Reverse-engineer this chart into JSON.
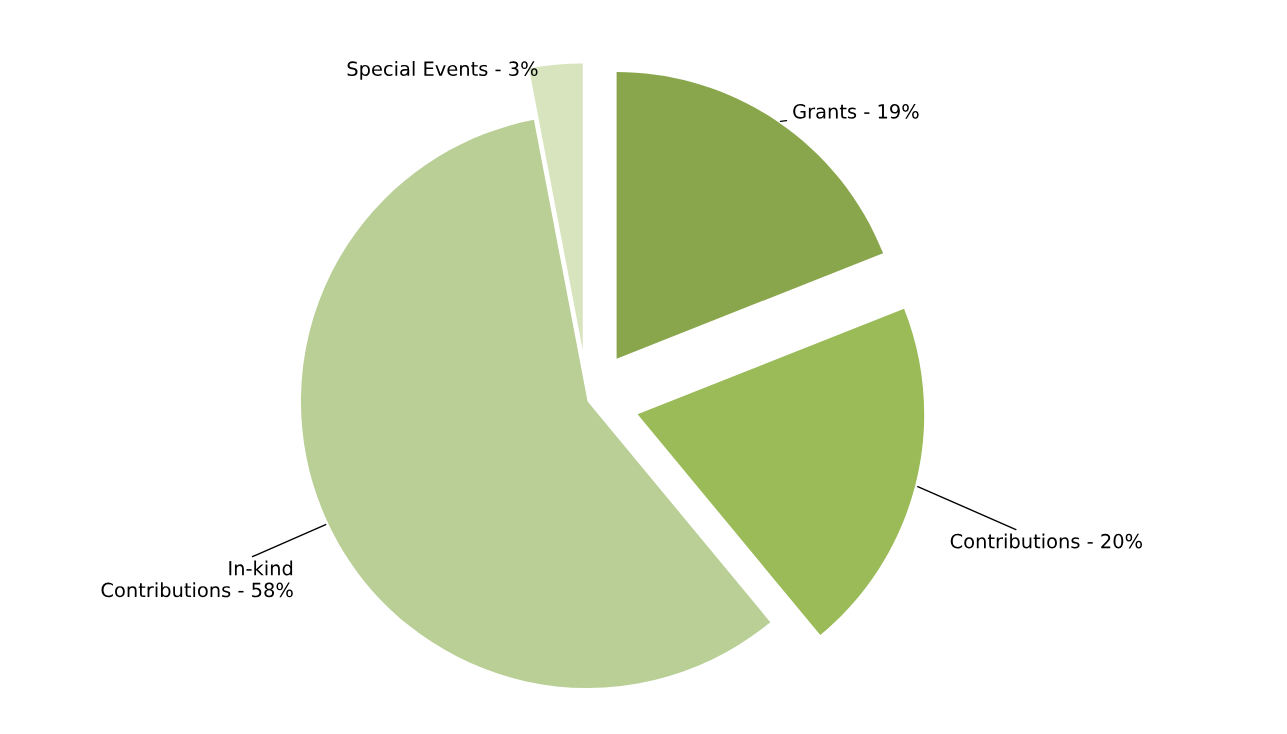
{
  "chart_data": {
    "type": "pie",
    "categories": [
      "Grants - 19%",
      "Contributions - 20%",
      "In-kind\nContributions - 58%",
      "Special Events - 3%"
    ],
    "values": [
      19,
      20,
      58,
      3
    ],
    "colors": [
      "#8aa64c",
      "#9bbb59",
      "#b9cf96",
      "#d7e4bd"
    ]
  }
}
